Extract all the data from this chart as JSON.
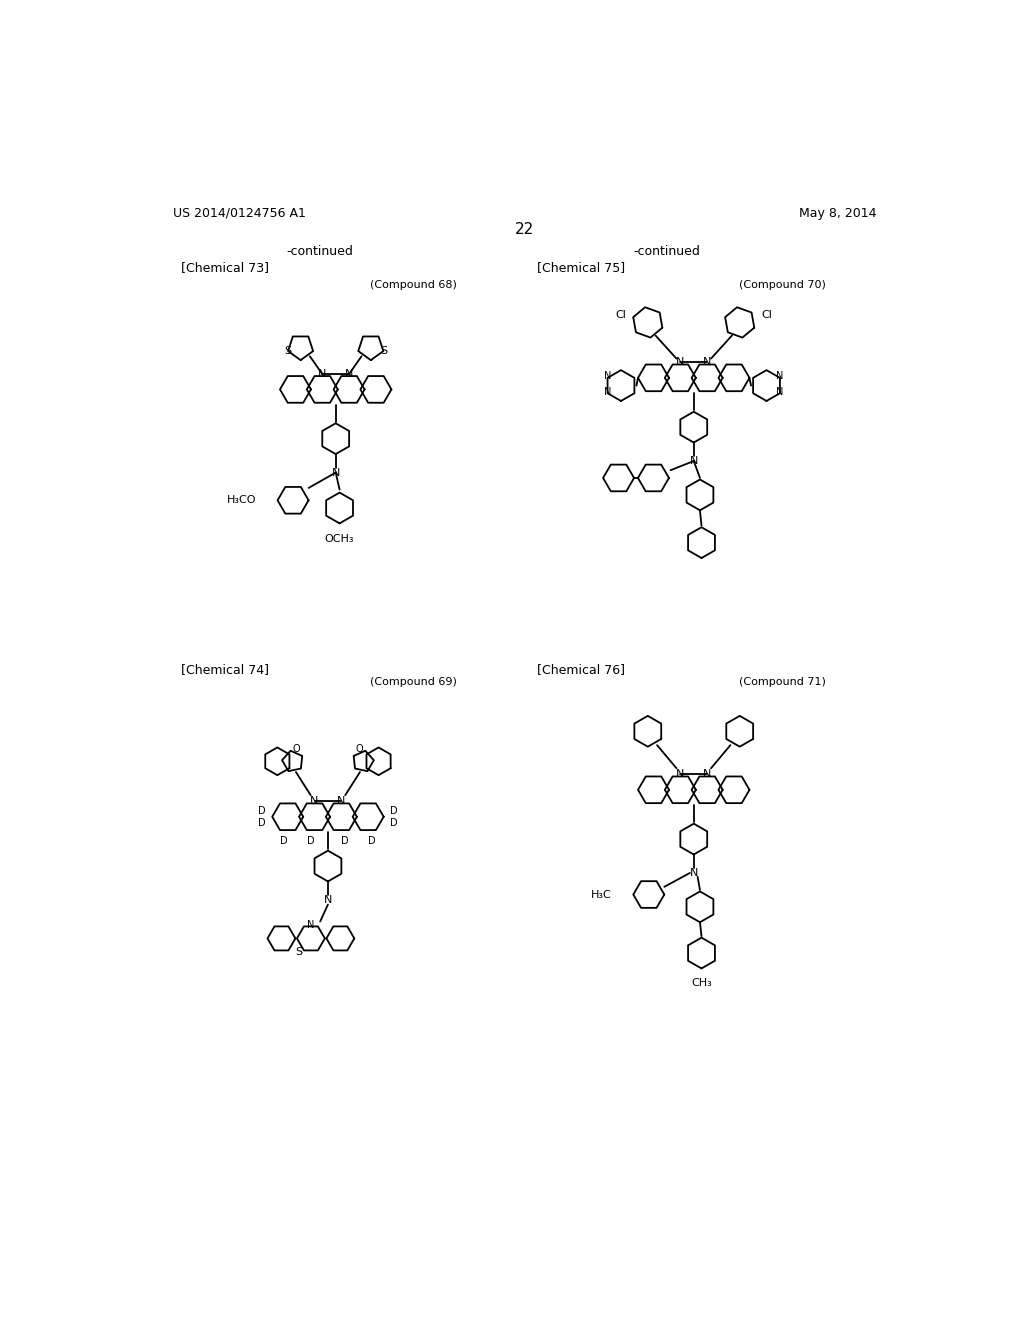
{
  "page_number": "22",
  "patent_number": "US 2014/0124756 A1",
  "patent_date": "May 8, 2014",
  "background_color": "#ffffff",
  "lw": 1.3
}
